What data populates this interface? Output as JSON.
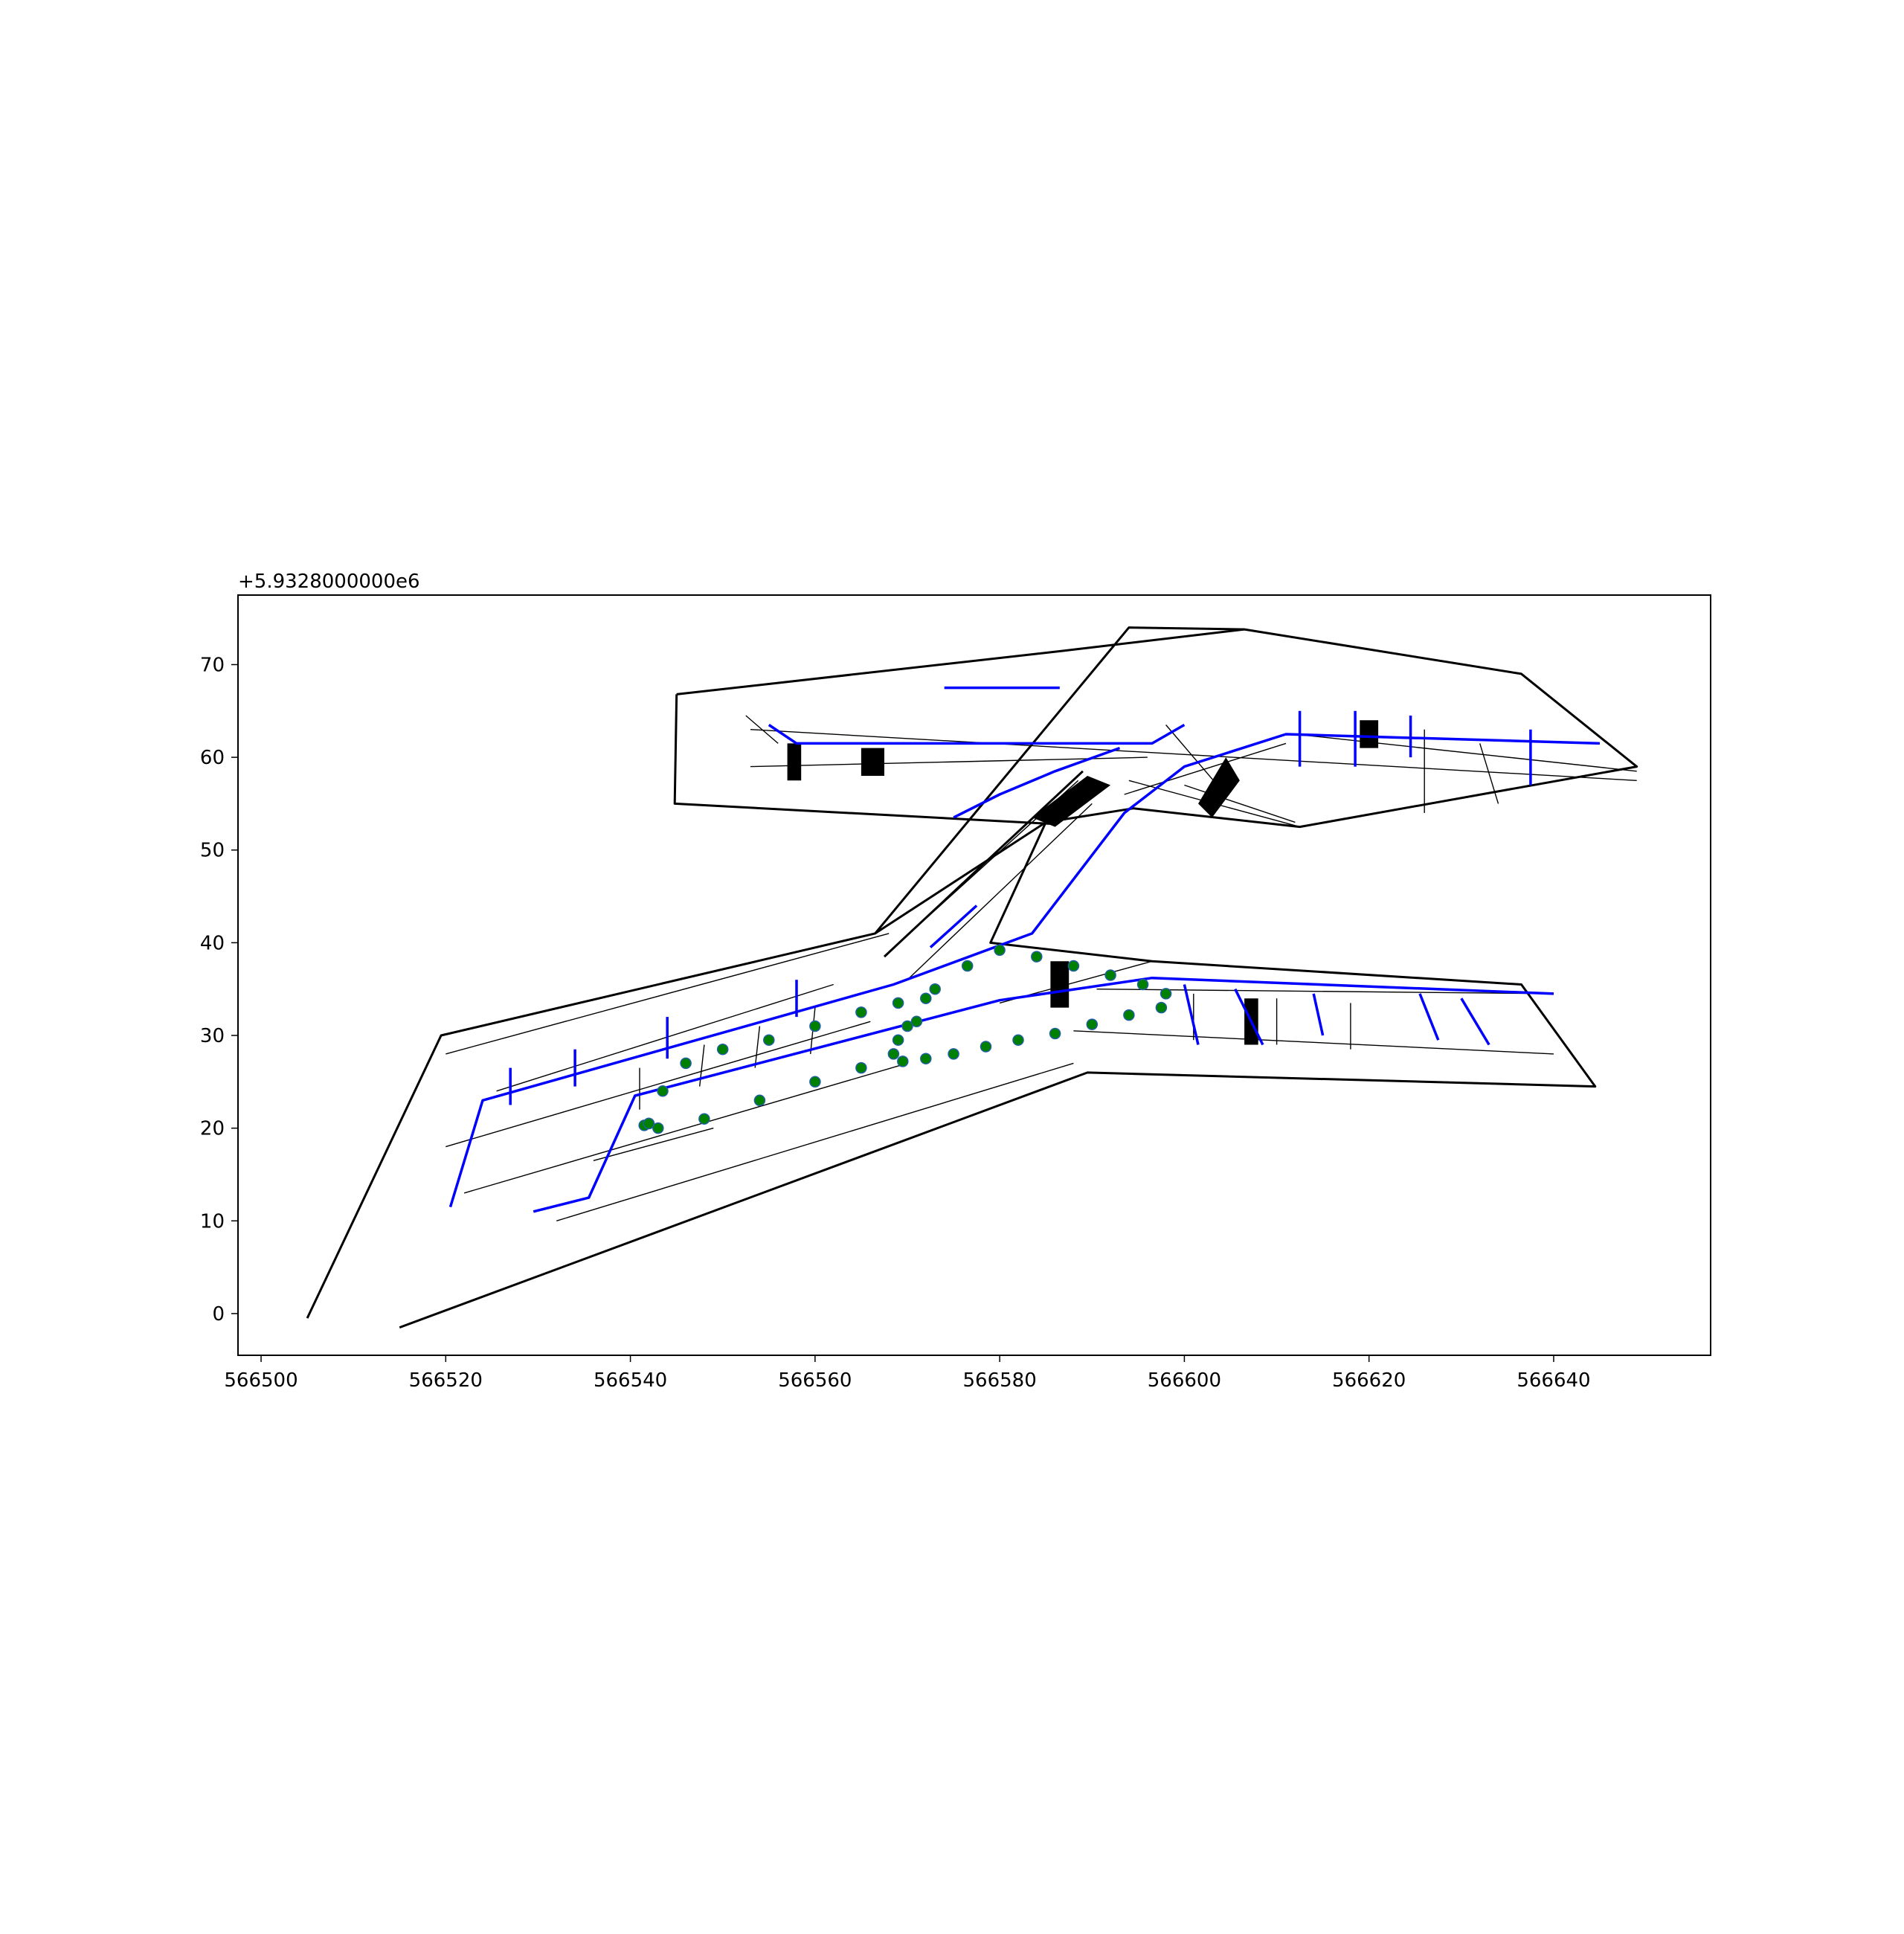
{
  "chart_data": {
    "type": "scatter",
    "title": "",
    "xlabel": "",
    "ylabel": "",
    "y_offset_label": "+5.9328000000e6",
    "xlim": [
      566497.5,
      566657.0
    ],
    "ylim": [
      -4.5,
      77.5
    ],
    "x_ticks": [
      566500,
      566520,
      566540,
      566560,
      566580,
      566600,
      566620,
      566640
    ],
    "y_ticks": [
      0,
      10,
      20,
      30,
      40,
      50,
      60,
      70
    ],
    "grid": false,
    "legend": "none",
    "colors": {
      "outline": "#000000",
      "network": "#0000ff",
      "trajectory": "#008000",
      "trajectory_edge": "#1f5fa0"
    },
    "floorplan_outline": [
      [
        [
          566505,
          -0.5
        ],
        [
          566519.5,
          30
        ],
        [
          566566.5,
          41
        ],
        [
          566594,
          74
        ],
        [
          566606.5,
          73.8
        ],
        [
          566636.5,
          69
        ],
        [
          566649,
          59
        ],
        [
          566612.5,
          52.5
        ],
        [
          566594.5,
          54.5
        ],
        [
          566585,
          53
        ],
        [
          566579,
          40
        ],
        [
          566596.5,
          38
        ],
        [
          566636.5,
          35.5
        ],
        [
          566644.5,
          24.5
        ],
        [
          566589.5,
          26
        ],
        [
          566515,
          -1.5
        ]
      ],
      [
        [
          566545,
          66.8
        ],
        [
          566587,
          71.5
        ],
        [
          566606.5,
          73.8
        ]
      ],
      [
        [
          566545,
          66.8
        ],
        [
          566544.8,
          55
        ],
        [
          566586,
          52.8
        ]
      ],
      [
        [
          566566.5,
          41
        ],
        [
          566585,
          53
        ]
      ],
      [
        [
          566567.5,
          38.5
        ],
        [
          566589,
          58.5
        ]
      ]
    ],
    "walls": [
      [
        [
          566520,
          28
        ],
        [
          566568,
          41
        ]
      ],
      [
        [
          566525.5,
          24
        ],
        [
          566562,
          35.5
        ]
      ],
      [
        [
          566520,
          18
        ],
        [
          566566,
          31.5
        ]
      ],
      [
        [
          566522,
          13
        ],
        [
          566570,
          27
        ]
      ],
      [
        [
          566532,
          10
        ],
        [
          566588,
          27
        ]
      ],
      [
        [
          566536,
          16.5
        ],
        [
          566549,
          20
        ]
      ],
      [
        [
          566568,
          39
        ],
        [
          566588.5,
          57.5
        ]
      ],
      [
        [
          566570,
          36
        ],
        [
          566590,
          55
        ]
      ],
      [
        [
          566580,
          33.5
        ],
        [
          566596.5,
          38
        ]
      ],
      [
        [
          566590.5,
          35
        ],
        [
          566640,
          34.5
        ]
      ],
      [
        [
          566588,
          30.5
        ],
        [
          566640,
          28
        ]
      ],
      [
        [
          566593.5,
          56
        ],
        [
          566611,
          61.5
        ]
      ],
      [
        [
          566553,
          63
        ],
        [
          566649,
          57.5
        ]
      ],
      [
        [
          566552.5,
          64.5
        ],
        [
          566556,
          61.5
        ]
      ],
      [
        [
          566553,
          59
        ],
        [
          566596,
          60
        ]
      ],
      [
        [
          566598,
          63.5
        ],
        [
          566604,
          56.5
        ]
      ],
      [
        [
          566600,
          57
        ],
        [
          566612,
          53
        ]
      ],
      [
        [
          566612,
          62.5
        ],
        [
          566649,
          58.5
        ]
      ],
      [
        [
          566594,
          57.5
        ],
        [
          566612.5,
          52.5
        ]
      ],
      [
        [
          566626,
          63
        ],
        [
          566626,
          54
        ]
      ],
      [
        [
          566632,
          61.5
        ],
        [
          566634,
          55
        ]
      ],
      [
        [
          566541,
          26.5
        ],
        [
          566541,
          22
        ]
      ],
      [
        [
          566548,
          29
        ],
        [
          566547.5,
          24.5
        ]
      ],
      [
        [
          566554,
          31
        ],
        [
          566553.5,
          26.5
        ]
      ],
      [
        [
          566560,
          33
        ],
        [
          566559.5,
          28
        ]
      ],
      [
        [
          566601,
          34.5
        ],
        [
          566601,
          29.5
        ]
      ],
      [
        [
          566610,
          34
        ],
        [
          566610,
          29
        ]
      ],
      [
        [
          566618,
          33.5
        ],
        [
          566618,
          28.5
        ]
      ]
    ],
    "dark_blocks": [
      [
        [
          566557,
          57.5
        ],
        [
          566558.5,
          57.5
        ],
        [
          566558.5,
          61.5
        ],
        [
          566557,
          61.5
        ]
      ],
      [
        [
          566565,
          58
        ],
        [
          566567.5,
          58
        ],
        [
          566567.5,
          61
        ],
        [
          566565,
          61
        ]
      ],
      [
        [
          566586,
          52.5
        ],
        [
          566592,
          57
        ],
        [
          566589.5,
          58
        ],
        [
          566583.5,
          53.5
        ]
      ],
      [
        [
          566603,
          53.5
        ],
        [
          566606,
          57.5
        ],
        [
          566604.5,
          60
        ],
        [
          566601.5,
          55
        ]
      ],
      [
        [
          566619,
          61
        ],
        [
          566621,
          61
        ],
        [
          566621,
          64
        ],
        [
          566619,
          64
        ]
      ],
      [
        [
          566585.5,
          33
        ],
        [
          566587.5,
          33
        ],
        [
          566587.5,
          38
        ],
        [
          566585.5,
          38
        ]
      ],
      [
        [
          566606.5,
          29
        ],
        [
          566608,
          29
        ],
        [
          566608,
          34
        ],
        [
          566606.5,
          34
        ]
      ]
    ],
    "network": [
      [
        [
          566529.5,
          11
        ],
        [
          566535.5,
          12.5
        ],
        [
          566540.5,
          23.5
        ],
        [
          566580,
          33.8
        ],
        [
          566596.5,
          36.2
        ],
        [
          566640,
          34.5
        ]
      ],
      [
        [
          566520.5,
          11.5
        ],
        [
          566524,
          23
        ],
        [
          566568.5,
          35.5
        ],
        [
          566583.5,
          41
        ],
        [
          566593.5,
          54
        ],
        [
          566600,
          59
        ],
        [
          566611,
          62.5
        ],
        [
          566645,
          61.5
        ]
      ],
      [
        [
          566555,
          63.5
        ],
        [
          566558,
          61.5
        ],
        [
          566596.5,
          61.5
        ],
        [
          566600,
          63.5
        ]
      ],
      [
        [
          566574,
          67.5
        ],
        [
          566586.5,
          67.5
        ]
      ],
      [
        [
          566575,
          53.5
        ],
        [
          566580,
          56
        ],
        [
          566586,
          58.5
        ],
        [
          566593,
          61
        ]
      ],
      [
        [
          566527,
          22.5
        ],
        [
          566527,
          26.5
        ]
      ],
      [
        [
          566534,
          24.5
        ],
        [
          566534,
          28.5
        ]
      ],
      [
        [
          566544,
          27.5
        ],
        [
          566544,
          32
        ]
      ],
      [
        [
          566558,
          32
        ],
        [
          566558,
          36
        ]
      ],
      [
        [
          566572.5,
          39.5
        ],
        [
          566577.5,
          44
        ]
      ],
      [
        [
          566600,
          35.5
        ],
        [
          566601.5,
          29
        ]
      ],
      [
        [
          566605.5,
          35
        ],
        [
          566608.5,
          29
        ]
      ],
      [
        [
          566614,
          34.5
        ],
        [
          566615,
          30
        ]
      ],
      [
        [
          566625.5,
          34.5
        ],
        [
          566627.5,
          29.5
        ]
      ],
      [
        [
          566630,
          34
        ],
        [
          566633,
          29
        ]
      ],
      [
        [
          566612.5,
          65
        ],
        [
          566612.5,
          59
        ]
      ],
      [
        [
          566618.5,
          65
        ],
        [
          566618.5,
          59
        ]
      ],
      [
        [
          566624.5,
          64.5
        ],
        [
          566624.5,
          60
        ]
      ],
      [
        [
          566637.5,
          63
        ],
        [
          566637.5,
          57
        ]
      ]
    ],
    "trajectory": {
      "x": [
        566542.0,
        566543.5,
        566546.0,
        566550.0,
        566555.0,
        566560.0,
        566565.0,
        566569.0,
        566572.0,
        566571.0,
        566569.0,
        566568.5,
        566570.0,
        566573.0,
        566576.5,
        566580.0,
        566584.0,
        566588.0,
        566592.0,
        566595.5,
        566598.0,
        566597.5,
        566594.0,
        566590.0,
        566586.0,
        566582.0,
        566578.5,
        566575.0,
        566572.0,
        566569.5,
        566565.0,
        566560.0,
        566554.0,
        566548.0,
        566543.0,
        566541.5,
        566542.0
      ],
      "y": [
        20.5,
        24.0,
        27.0,
        28.5,
        29.5,
        31.0,
        32.5,
        33.5,
        34.0,
        31.5,
        29.5,
        28.0,
        31.0,
        35.0,
        37.5,
        39.2,
        38.5,
        37.5,
        36.5,
        35.5,
        34.5,
        33.0,
        32.2,
        31.2,
        30.2,
        29.5,
        28.8,
        28.0,
        27.5,
        27.2,
        26.5,
        25.0,
        23.0,
        21.0,
        20.0,
        20.3,
        20.5
      ]
    }
  }
}
